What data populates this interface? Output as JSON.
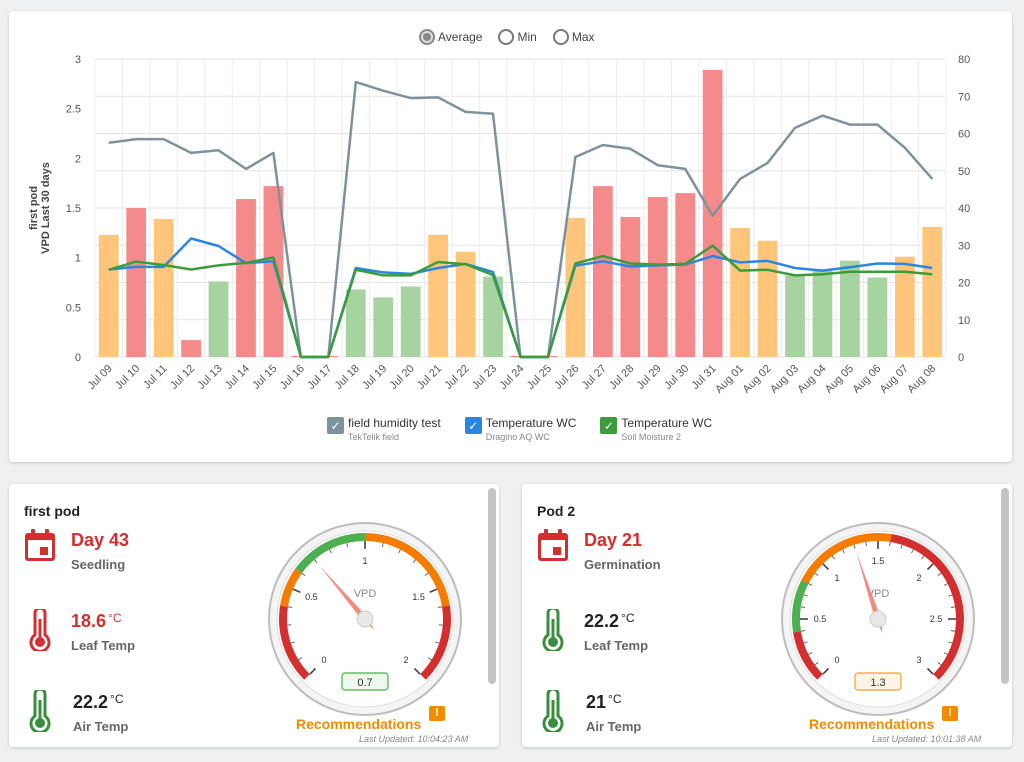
{
  "radio": {
    "options": [
      "Average",
      "Min",
      "Max"
    ],
    "selected": "Average"
  },
  "chart_data": {
    "type": "bar",
    "ylabel_left": [
      "first pod",
      "VPD Last 30 days"
    ],
    "yleft_range": [
      0,
      3
    ],
    "yleft_ticks": [
      "0",
      "0.5",
      "1",
      "1.5",
      "2",
      "2.5",
      "3"
    ],
    "yright_range": [
      0,
      80
    ],
    "yright_ticks": [
      "0",
      "10",
      "20",
      "30",
      "40",
      "50",
      "60",
      "70",
      "80"
    ],
    "grid": true,
    "categories": [
      "Jul 09",
      "Jul 10",
      "Jul 11",
      "Jul 12",
      "Jul 13",
      "Jul 14",
      "Jul 15",
      "Jul 16",
      "Jul 17",
      "Jul 18",
      "Jul 19",
      "Jul 20",
      "Jul 21",
      "Jul 22",
      "Jul 23",
      "Jul 24",
      "Jul 25",
      "Jul 26",
      "Jul 27",
      "Jul 28",
      "Jul 29",
      "Jul 30",
      "Jul 31",
      "Aug 01",
      "Aug 02",
      "Aug 03",
      "Aug 04",
      "Aug 05",
      "Aug 06",
      "Aug 07",
      "Aug 08"
    ],
    "bars": {
      "values": [
        1.23,
        1.5,
        1.39,
        0.17,
        0.76,
        1.59,
        1.72,
        0,
        0,
        0.68,
        0.6,
        0.71,
        1.23,
        1.06,
        0.81,
        0,
        0,
        1.4,
        1.72,
        1.41,
        1.61,
        1.65,
        2.89,
        1.3,
        1.17,
        0.82,
        0.87,
        0.97,
        0.8,
        1.01,
        1.31
      ],
      "colors": [
        "#ffc57a",
        "#f58a8a",
        "#ffc57a",
        "#f58a8a",
        "#a6d3a0",
        "#f58a8a",
        "#f58a8a",
        "#f58a8a",
        "#f58a8a",
        "#a6d3a0",
        "#a6d3a0",
        "#a6d3a0",
        "#ffc57a",
        "#ffc57a",
        "#a6d3a0",
        "#f58a8a",
        "#f58a8a",
        "#ffc57a",
        "#f58a8a",
        "#f58a8a",
        "#f58a8a",
        "#f58a8a",
        "#f58a8a",
        "#ffc57a",
        "#ffc57a",
        "#a6d3a0",
        "#a6d3a0",
        "#a6d3a0",
        "#a6d3a0",
        "#ffc57a",
        "#ffc57a"
      ]
    },
    "series": [
      {
        "name": "field humidity test",
        "sub": "TekTelik field",
        "color": "#7d929c",
        "axis": "right",
        "values": [
          57.5,
          58.5,
          58.5,
          54.8,
          55.5,
          50.5,
          54.8,
          0,
          0,
          73.8,
          71.5,
          69.5,
          69.7,
          65.8,
          65.3,
          0,
          0,
          53.7,
          56.9,
          55.9,
          51.5,
          50.5,
          37.9,
          47.8,
          52.1,
          61.5,
          64.8,
          62.4,
          62.4,
          56.2,
          47.8
        ]
      },
      {
        "name": "Temperature WC",
        "sub": "Dragino AQ WC",
        "color": "#2b86e0",
        "axis": "right",
        "values": [
          23.5,
          24.2,
          24.2,
          31.8,
          29.8,
          25.2,
          25.7,
          0,
          0,
          23.9,
          22.7,
          22.3,
          23.9,
          25.0,
          22.8,
          0,
          0,
          24.5,
          25.7,
          24.3,
          24.6,
          24.8,
          27.1,
          25.4,
          25.8,
          23.9,
          23.2,
          24.1,
          25.1,
          25.0,
          23.9
        ]
      },
      {
        "name": "Temperature WC",
        "sub": "Soil Moisture 2",
        "color": "#3c9c3c",
        "axis": "right",
        "values": [
          23.4,
          25.6,
          24.7,
          23.5,
          24.6,
          25.3,
          26.7,
          0,
          0,
          23.4,
          21.9,
          21.9,
          25.5,
          24.9,
          22.0,
          0,
          0,
          25.1,
          27.1,
          25.1,
          24.8,
          25.0,
          29.9,
          23.2,
          23.4,
          21.9,
          22.2,
          22.9,
          22.9,
          22.9,
          22.2
        ]
      }
    ]
  },
  "legend": [
    {
      "label": "field humidity test",
      "sub": "TekTelik field",
      "color": "#7d929c"
    },
    {
      "label": "Temperature WC",
      "sub": "Dragino AQ WC",
      "color": "#2b86e0"
    },
    {
      "label": "Temperature WC",
      "sub": "Soil Moisture 2",
      "color": "#3c9c3c"
    }
  ],
  "pods": [
    {
      "title": "first pod",
      "day": "Day 43",
      "stage": "Seedling",
      "leaf_temp": "18.6",
      "leaf_unit": "°C",
      "leaf_label": "Leaf Temp",
      "leaf_color": "#d32f2f",
      "air_temp": "22.2",
      "air_unit": "°C",
      "air_label": "Air Temp",
      "air_color": "#388e3c",
      "gauge": {
        "label": "VPD",
        "min": 0,
        "max": 2,
        "ticks": [
          "0",
          "0.5",
          "1",
          "1.5",
          "2"
        ],
        "value": 0.7,
        "display": "0.7",
        "box_border": "#4caf50",
        "box_fill": "#eef8ec",
        "bands": [
          {
            "from": 0,
            "to": 0.4,
            "color": "#d32f2f"
          },
          {
            "from": 0.4,
            "to": 0.6,
            "color": "#f57c00"
          },
          {
            "from": 0.6,
            "to": 1.0,
            "color": "#4caf50"
          },
          {
            "from": 1.0,
            "to": 1.6,
            "color": "#f57c00"
          },
          {
            "from": 1.6,
            "to": 2.0,
            "color": "#d32f2f"
          }
        ]
      },
      "recommendations": "Recommendations",
      "updated": "Last Updated: 10:04:23 AM"
    },
    {
      "title": "Pod 2",
      "day": "Day 21",
      "stage": "Germination",
      "leaf_temp": "22.2",
      "leaf_unit": "°C",
      "leaf_label": "Leaf Temp",
      "leaf_color": "#388e3c",
      "air_temp": "21",
      "air_unit": "°C",
      "air_label": "Air Temp",
      "air_color": "#388e3c",
      "gauge": {
        "label": "VPD",
        "min": 0,
        "max": 3,
        "ticks": [
          "0",
          "0.5",
          "1",
          "1.5",
          "2",
          "2.5",
          "3"
        ],
        "value": 1.3,
        "display": "1.3",
        "box_border": "#f0a030",
        "box_fill": "#fff4e5",
        "bands": [
          {
            "from": 0,
            "to": 0.4,
            "color": "#d32f2f"
          },
          {
            "from": 0.4,
            "to": 0.8,
            "color": "#4caf50"
          },
          {
            "from": 0.8,
            "to": 1.6,
            "color": "#f57c00"
          },
          {
            "from": 1.6,
            "to": 3.0,
            "color": "#d32f2f"
          }
        ]
      },
      "recommendations": "Recommendations",
      "updated": "Last Updated: 10:01:38 AM"
    }
  ]
}
